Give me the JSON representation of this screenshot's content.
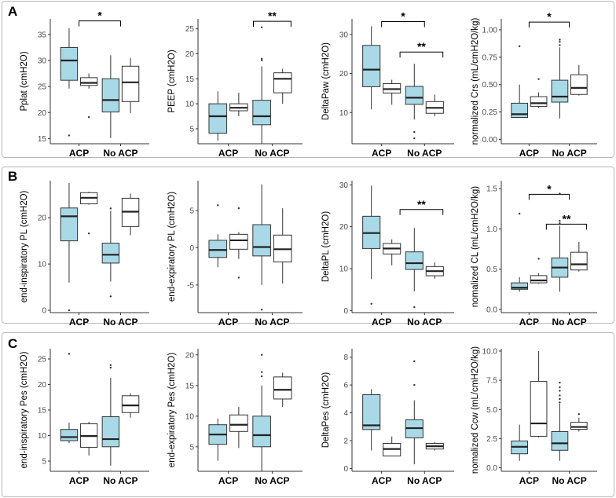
{
  "colors": {
    "acp_fill": "#a9d9e6",
    "noacp_fill": "#ffffff",
    "stroke": "#333333",
    "median": "#222222"
  },
  "rows": [
    {
      "label": "A"
    },
    {
      "label": "B"
    },
    {
      "label": "C"
    }
  ],
  "chart_data": [
    {
      "type": "box",
      "panel": "A1",
      "ylabel": "Pplat (cmH2O)",
      "ylim": [
        14,
        38
      ],
      "yticks": [
        15,
        20,
        25,
        30,
        35
      ],
      "categories": [
        "ACP",
        "No ACP"
      ],
      "boxes": [
        {
          "group": 0,
          "variant": "acp",
          "q1": 26.2,
          "med": 30,
          "q3": 32.5,
          "wlo": 24.6,
          "whi": 36.2,
          "out": [
            15.6
          ]
        },
        {
          "group": 0,
          "variant": "noacp",
          "q1": 25.2,
          "med": 25.7,
          "q3": 26.7,
          "wlo": 24.6,
          "whi": 27.5,
          "out": [
            19.1
          ]
        },
        {
          "group": 1,
          "variant": "acp",
          "q1": 20.1,
          "med": 22.4,
          "q3": 26.5,
          "wlo": 15.1,
          "whi": 31,
          "out": []
        },
        {
          "group": 1,
          "variant": "noacp",
          "q1": 22.1,
          "med": 25.8,
          "q3": 28.9,
          "wlo": 19.9,
          "whi": 30.5,
          "out": []
        }
      ],
      "brackets": [
        {
          "from": 0,
          "to": 1,
          "label": "*",
          "y": 37.6
        }
      ]
    },
    {
      "type": "box",
      "panel": "A2",
      "ylabel": "PEEP (cmH2O)",
      "ylim": [
        2,
        27
      ],
      "yticks": [
        5,
        10,
        15,
        20,
        25
      ],
      "categories": [
        "ACP",
        "No ACP"
      ],
      "boxes": [
        {
          "group": 0,
          "variant": "acp",
          "q1": 4.1,
          "med": 7.5,
          "q3": 10,
          "wlo": 2.6,
          "whi": 12.5,
          "out": []
        },
        {
          "group": 0,
          "variant": "noacp",
          "q1": 8.6,
          "med": 9.2,
          "q3": 10,
          "wlo": 7.5,
          "whi": 12.2,
          "out": []
        },
        {
          "group": 1,
          "variant": "acp",
          "q1": 5.8,
          "med": 7.5,
          "q3": 10.7,
          "wlo": 2,
          "whi": 17.5,
          "out": [
            18.7,
            19,
            25.3
          ]
        },
        {
          "group": 1,
          "variant": "noacp",
          "q1": 12.2,
          "med": 15,
          "q3": 16.2,
          "wlo": 10,
          "whi": 17,
          "out": []
        }
      ],
      "brackets": [
        {
          "from": 1,
          "to": 1.4,
          "fromOff": -0.18,
          "toOff": 0.18,
          "label": "**",
          "y": 26.5
        }
      ]
    },
    {
      "type": "box",
      "panel": "A3",
      "ylabel": "DeltaPaw (cmH2O)",
      "ylim": [
        2,
        34
      ],
      "yticks": [
        10,
        20,
        30
      ],
      "categories": [
        "ACP",
        "No ACP"
      ],
      "boxes": [
        {
          "group": 0,
          "variant": "acp",
          "q1": 16.6,
          "med": 21,
          "q3": 27.2,
          "wlo": 10.8,
          "whi": 32.1,
          "out": []
        },
        {
          "group": 0,
          "variant": "noacp",
          "q1": 15,
          "med": 16,
          "q3": 17.4,
          "wlo": 12,
          "whi": 18.4,
          "out": []
        },
        {
          "group": 1,
          "variant": "acp",
          "q1": 12.1,
          "med": 13.8,
          "q3": 16.7,
          "wlo": 8.2,
          "whi": 22.5,
          "out": [
            5,
            3.4
          ]
        },
        {
          "group": 1,
          "variant": "noacp",
          "q1": 9.8,
          "med": 11.2,
          "q3": 12.8,
          "wlo": 9,
          "whi": 14.6,
          "out": []
        }
      ],
      "brackets": [
        {
          "from": 0,
          "to": 1,
          "label": "*",
          "y": 33.3
        },
        {
          "from": 0,
          "to": 1,
          "fromOff": 0.18,
          "toOff": 0.18,
          "label": "**",
          "y": 25.5
        }
      ]
    },
    {
      "type": "box",
      "panel": "A4",
      "ylabel": "normalized Crs (mL/cmH2O/kg)",
      "ylim": [
        -0.04,
        1.1
      ],
      "yticks": [
        0,
        0.25,
        0.5,
        0.75,
        1
      ],
      "ytickfmt": 2,
      "categories": [
        "ACP",
        "No ACP"
      ],
      "boxes": [
        {
          "group": 0,
          "variant": "acp",
          "q1": 0.2,
          "med": 0.23,
          "q3": 0.33,
          "wlo": 0.2,
          "whi": 0.5,
          "out": [
            0.85
          ]
        },
        {
          "group": 0,
          "variant": "noacp",
          "q1": 0.3,
          "med": 0.33,
          "q3": 0.39,
          "wlo": 0.29,
          "whi": 0.43,
          "out": [
            0.55
          ]
        },
        {
          "group": 1,
          "variant": "acp",
          "q1": 0.34,
          "med": 0.39,
          "q3": 0.54,
          "wlo": 0.19,
          "whi": 0.84,
          "out": [
            0.86,
            0.89,
            0.91
          ]
        },
        {
          "group": 1,
          "variant": "noacp",
          "q1": 0.41,
          "med": 0.47,
          "q3": 0.59,
          "wlo": 0.4,
          "whi": 0.68,
          "out": []
        }
      ],
      "brackets": [
        {
          "from": 0,
          "to": 1,
          "label": "*",
          "y": 1.07
        }
      ]
    },
    {
      "type": "box",
      "panel": "B1",
      "ylabel": "end-inspiratory PL (cmH2O)",
      "ylim": [
        -0.5,
        28
      ],
      "yticks": [
        0,
        10,
        20
      ],
      "categories": [
        "ACP",
        "No ACP"
      ],
      "boxes": [
        {
          "group": 0,
          "variant": "acp",
          "q1": 15,
          "med": 20.3,
          "q3": 22.1,
          "wlo": 6,
          "whi": 27.5,
          "out": [
            0
          ]
        },
        {
          "group": 0,
          "variant": "noacp",
          "q1": 23,
          "med": 24.3,
          "q3": 25.4,
          "wlo": 22.8,
          "whi": 25.6,
          "out": [
            16.6
          ]
        },
        {
          "group": 1,
          "variant": "acp",
          "q1": 10.2,
          "med": 12,
          "q3": 14.5,
          "wlo": 6.2,
          "whi": 21.5,
          "out": [
            22,
            3
          ]
        },
        {
          "group": 1,
          "variant": "noacp",
          "q1": 18.1,
          "med": 21.3,
          "q3": 24.2,
          "wlo": 16.2,
          "whi": 25.2,
          "out": []
        }
      ],
      "brackets": []
    },
    {
      "type": "box",
      "panel": "B2",
      "ylabel": "end-expiratory PL (cmH2O)",
      "ylim": [
        -8.7,
        9
      ],
      "yticks": [
        -5,
        0,
        5
      ],
      "categories": [
        "ACP",
        "No ACP"
      ],
      "boxes": [
        {
          "group": 0,
          "variant": "acp",
          "q1": -1.3,
          "med": -0.3,
          "q3": 1,
          "wlo": -2.6,
          "whi": 1.8,
          "out": [
            5.7
          ]
        },
        {
          "group": 0,
          "variant": "noacp",
          "q1": -0.2,
          "med": 1,
          "q3": 1.8,
          "wlo": -1.5,
          "whi": 2.1,
          "out": [
            5.3,
            -4
          ]
        },
        {
          "group": 1,
          "variant": "acp",
          "q1": -1.1,
          "med": 0.1,
          "q3": 3.1,
          "wlo": -5,
          "whi": 8.5,
          "out": [
            -8.3
          ]
        },
        {
          "group": 1,
          "variant": "noacp",
          "q1": -1.9,
          "med": -0.2,
          "q3": 1.7,
          "wlo": -4.8,
          "whi": 5.3,
          "out": []
        }
      ],
      "brackets": []
    },
    {
      "type": "box",
      "panel": "B3",
      "ylabel": "DeltaPL (cmH2O)",
      "ylim": [
        -0.5,
        31
      ],
      "yticks": [
        0,
        10,
        20,
        30
      ],
      "categories": [
        "ACP",
        "No ACP"
      ],
      "boxes": [
        {
          "group": 0,
          "variant": "acp",
          "q1": 14.8,
          "med": 18.5,
          "q3": 22.5,
          "wlo": 7.5,
          "whi": 29.8,
          "out": [
            1.6
          ]
        },
        {
          "group": 0,
          "variant": "noacp",
          "q1": 13.5,
          "med": 14.8,
          "q3": 16,
          "wlo": 10.8,
          "whi": 17,
          "out": []
        },
        {
          "group": 1,
          "variant": "acp",
          "q1": 9.8,
          "med": 11.3,
          "q3": 14,
          "wlo": 4.6,
          "whi": 19.7,
          "out": [
            0.8
          ]
        },
        {
          "group": 1,
          "variant": "noacp",
          "q1": 8.3,
          "med": 9.4,
          "q3": 10.5,
          "wlo": 7.6,
          "whi": 11.5,
          "out": []
        }
      ],
      "brackets": [
        {
          "from": 0,
          "to": 1,
          "fromOff": 0.18,
          "toOff": 0.18,
          "label": "**",
          "y": 24.1
        }
      ]
    },
    {
      "type": "box",
      "panel": "B4",
      "ylabel": "nomalized CL (mL/cmH2O/kg)",
      "ylim": [
        -0.04,
        1.6
      ],
      "yticks": [
        0,
        0.5,
        1,
        1.5
      ],
      "ytickfmt": 1,
      "categories": [
        "ACP",
        "No ACP"
      ],
      "boxes": [
        {
          "group": 0,
          "variant": "acp",
          "q1": 0.25,
          "med": 0.27,
          "q3": 0.33,
          "wlo": 0.22,
          "whi": 0.4,
          "out": [
            1.19
          ]
        },
        {
          "group": 0,
          "variant": "noacp",
          "q1": 0.33,
          "med": 0.36,
          "q3": 0.42,
          "wlo": 0.32,
          "whi": 0.45,
          "out": [
            0.63
          ]
        },
        {
          "group": 1,
          "variant": "acp",
          "q1": 0.4,
          "med": 0.52,
          "q3": 0.64,
          "wlo": 0.22,
          "whi": 1.04,
          "out": [
            1.07,
            1.1,
            1.44
          ]
        },
        {
          "group": 1,
          "variant": "noacp",
          "q1": 0.49,
          "med": 0.56,
          "q3": 0.71,
          "wlo": 0.47,
          "whi": 0.84,
          "out": []
        }
      ],
      "brackets": [
        {
          "from": 0,
          "to": 1,
          "label": "*",
          "y": 1.43
        },
        {
          "from": 0,
          "to": 1,
          "fromOff": 0.18,
          "toOff": 0.18,
          "label": "**",
          "y": 1.06
        }
      ]
    },
    {
      "type": "box",
      "panel": "C1",
      "ylabel": "end-inspiratory Pes (cmH2O)",
      "ylim": [
        3,
        27
      ],
      "yticks": [
        5,
        10,
        15,
        20,
        25
      ],
      "categories": [
        "ACP",
        "No ACP"
      ],
      "boxes": [
        {
          "group": 0,
          "variant": "acp",
          "q1": 9,
          "med": 9.7,
          "q3": 11.2,
          "wlo": 8.5,
          "whi": 12.5,
          "out": [
            26
          ]
        },
        {
          "group": 0,
          "variant": "noacp",
          "q1": 7.7,
          "med": 9.9,
          "q3": 12.3,
          "wlo": 6.1,
          "whi": 12.7,
          "out": []
        },
        {
          "group": 1,
          "variant": "acp",
          "q1": 7.8,
          "med": 9.3,
          "q3": 13.7,
          "wlo": 4.1,
          "whi": 21.3,
          "out": [
            23.3,
            23.8
          ]
        },
        {
          "group": 1,
          "variant": "noacp",
          "q1": 14.5,
          "med": 15.9,
          "q3": 17.8,
          "wlo": 13.5,
          "whi": 18.3,
          "out": []
        }
      ],
      "brackets": []
    },
    {
      "type": "box",
      "panel": "C2",
      "ylabel": "end-expiratory Pes (cmH2O)",
      "ylim": [
        1,
        21
      ],
      "yticks": [
        5,
        10,
        15,
        20
      ],
      "categories": [
        "ACP",
        "No ACP"
      ],
      "boxes": [
        {
          "group": 0,
          "variant": "acp",
          "q1": 5.4,
          "med": 7,
          "q3": 8.6,
          "wlo": 2.7,
          "whi": 9.6,
          "out": []
        },
        {
          "group": 0,
          "variant": "noacp",
          "q1": 7.5,
          "med": 8.6,
          "q3": 10.2,
          "wlo": 4.8,
          "whi": 11.5,
          "out": []
        },
        {
          "group": 1,
          "variant": "acp",
          "q1": 5,
          "med": 6.9,
          "q3": 10,
          "wlo": 1,
          "whi": 15,
          "out": [
            16.5,
            17.2,
            20
          ]
        },
        {
          "group": 1,
          "variant": "noacp",
          "q1": 12.8,
          "med": 14.3,
          "q3": 16.4,
          "wlo": 11.5,
          "whi": 17.1,
          "out": []
        }
      ],
      "brackets": []
    },
    {
      "type": "box",
      "panel": "C3",
      "ylabel": "DeltaPes (cmH2O)",
      "ylim": [
        -0.2,
        8.6
      ],
      "yticks": [
        0,
        2,
        4,
        6,
        8
      ],
      "categories": [
        "ACP",
        "No ACP"
      ],
      "boxes": [
        {
          "group": 0,
          "variant": "acp",
          "q1": 2.8,
          "med": 3.1,
          "q3": 5.3,
          "wlo": 1.3,
          "whi": 5.7,
          "out": []
        },
        {
          "group": 0,
          "variant": "noacp",
          "q1": 0.9,
          "med": 1.4,
          "q3": 1.8,
          "wlo": 0.9,
          "whi": 2.3,
          "out": []
        },
        {
          "group": 1,
          "variant": "acp",
          "q1": 2.2,
          "med": 2.9,
          "q3": 3.5,
          "wlo": 0.3,
          "whi": 4.9,
          "out": [
            6,
            7.7
          ]
        },
        {
          "group": 1,
          "variant": "noacp",
          "q1": 1.4,
          "med": 1.6,
          "q3": 1.8,
          "wlo": 1.3,
          "whi": 1.9,
          "out": []
        }
      ],
      "brackets": []
    },
    {
      "type": "box",
      "panel": "C4",
      "ylabel": "nomalized Ccw (mL/cmH2O/kg)",
      "ylim": [
        -0.3,
        10.2
      ],
      "yticks": [
        0,
        2.5,
        5,
        7.5,
        10
      ],
      "ytickfmt": 1,
      "categories": [
        "ACP",
        "No ACP"
      ],
      "boxes": [
        {
          "group": 0,
          "variant": "acp",
          "q1": 1.2,
          "med": 1.8,
          "q3": 2.3,
          "wlo": 0.6,
          "whi": 3.7,
          "out": []
        },
        {
          "group": 0,
          "variant": "noacp",
          "q1": 2.7,
          "med": 3.8,
          "q3": 7.4,
          "wlo": 2.6,
          "whi": 10,
          "out": []
        },
        {
          "group": 1,
          "variant": "acp",
          "q1": 1.5,
          "med": 2.1,
          "q3": 3.1,
          "wlo": 0.6,
          "whi": 5.5,
          "out": [
            5.6,
            5.9,
            6.2,
            6.6,
            6.9,
            7.3
          ]
        },
        {
          "group": 1,
          "variant": "noacp",
          "q1": 3.3,
          "med": 3.5,
          "q3": 3.9,
          "wlo": 3.1,
          "whi": 4.3,
          "out": [
            4.6
          ]
        }
      ],
      "brackets": []
    }
  ]
}
